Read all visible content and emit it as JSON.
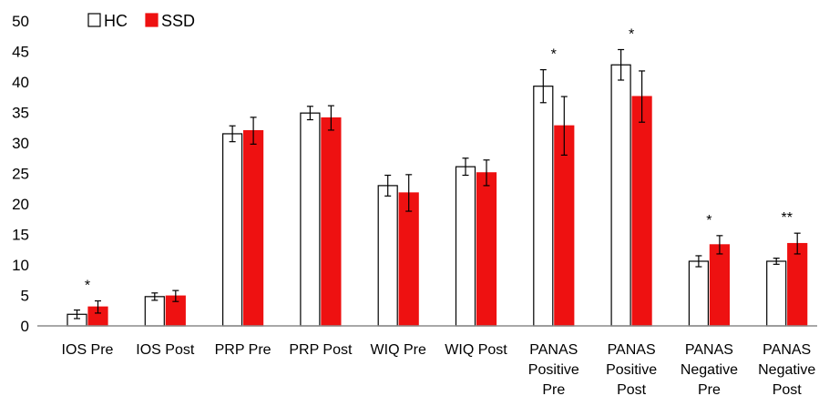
{
  "chart_data": {
    "type": "bar",
    "title": "",
    "xlabel": "",
    "ylabel": "",
    "ylim": [
      0,
      50
    ],
    "yticks": [
      0,
      5,
      10,
      15,
      20,
      25,
      30,
      35,
      40,
      45,
      50
    ],
    "grid": false,
    "legend_position": "top-left",
    "categories": [
      [
        "IOS Pre"
      ],
      [
        "IOS Post"
      ],
      [
        "PRP Pre"
      ],
      [
        "PRP Post"
      ],
      [
        "WIQ Pre"
      ],
      [
        "WIQ Post"
      ],
      [
        "PANAS",
        "Positive",
        "Pre"
      ],
      [
        "PANAS",
        "Positive",
        "Post"
      ],
      [
        "PANAS",
        "Negative",
        "Pre"
      ],
      [
        "PANAS",
        "Negative",
        "Post"
      ]
    ],
    "series": [
      {
        "name": "HC",
        "fill": "#ffffff",
        "stroke": "#000000",
        "values": [
          1.9,
          4.8,
          31.5,
          34.9,
          23.0,
          26.1,
          39.3,
          42.8,
          10.6,
          10.6
        ],
        "errors": [
          0.7,
          0.6,
          1.3,
          1.1,
          1.7,
          1.4,
          2.7,
          2.5,
          0.9,
          0.5
        ]
      },
      {
        "name": "SSD",
        "fill": "#ee1111",
        "stroke": "#ee1111",
        "values": [
          3.1,
          4.9,
          32.0,
          34.1,
          21.8,
          25.1,
          32.8,
          37.6,
          13.3,
          13.5
        ],
        "errors": [
          1.0,
          0.9,
          2.2,
          2.0,
          3.0,
          2.1,
          4.8,
          4.2,
          1.5,
          1.7
        ]
      }
    ],
    "annotations": [
      "*",
      "",
      "",
      "",
      "",
      "",
      "*",
      "*",
      "*",
      "**"
    ]
  }
}
